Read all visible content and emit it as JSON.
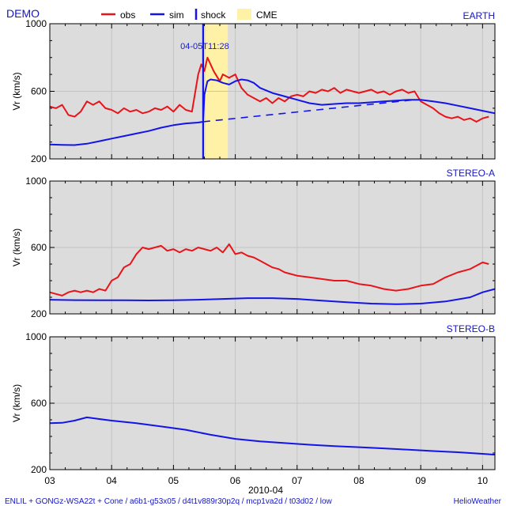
{
  "header": {
    "title": "DEMO",
    "legend": [
      {
        "label": "obs",
        "color": "#e8141a",
        "kind": "line"
      },
      {
        "label": "sim",
        "color": "#1414e8",
        "kind": "line"
      },
      {
        "label": "shock",
        "color": "#1414e8",
        "kind": "tick"
      },
      {
        "label": "CME",
        "color": "#fff2a6",
        "kind": "box"
      }
    ]
  },
  "footer": {
    "left": "ENLIL + GONGz-WSA22t + Cone / a6b1-g53x05 / d4t1v889r30p2q / mcp1va2d / t03d02 / low",
    "right": "HelioWeather"
  },
  "colors": {
    "obs": "#e8141a",
    "sim": "#1414e8",
    "panel_bg": "#dcdcdc",
    "cme": "#fff2a6",
    "grid": "#c4c4c4"
  },
  "chart_data": [
    {
      "type": "line",
      "title": "EARTH",
      "ylabel": "Vr (km/s)",
      "xlabel": "2010-04",
      "xlim": [
        3.0,
        10.2
      ],
      "ylim": [
        200,
        1000
      ],
      "yticks": [
        200,
        600,
        1000
      ],
      "xticks": [
        "03",
        "04",
        "05",
        "06",
        "07",
        "08",
        "09",
        "10"
      ],
      "shock": {
        "x": 5.48,
        "label": "04-05T11:28"
      },
      "cme": {
        "x_start": 5.52,
        "x_end": 5.88
      },
      "series": [
        {
          "name": "obs",
          "x": [
            3.0,
            3.1,
            3.2,
            3.3,
            3.4,
            3.5,
            3.6,
            3.7,
            3.8,
            3.9,
            4.0,
            4.1,
            4.2,
            4.3,
            4.4,
            4.5,
            4.6,
            4.7,
            4.8,
            4.9,
            5.0,
            5.1,
            5.2,
            5.3,
            5.4,
            5.45,
            5.5,
            5.55,
            5.6,
            5.65,
            5.7,
            5.75,
            5.8,
            5.9,
            6.0,
            6.1,
            6.2,
            6.3,
            6.4,
            6.5,
            6.6,
            6.7,
            6.8,
            6.9,
            7.0,
            7.1,
            7.2,
            7.3,
            7.4,
            7.5,
            7.6,
            7.7,
            7.8,
            7.9,
            8.0,
            8.1,
            8.2,
            8.3,
            8.4,
            8.5,
            8.6,
            8.7,
            8.8,
            8.9,
            9.0,
            9.1,
            9.2,
            9.3,
            9.4,
            9.5,
            9.6,
            9.7,
            9.8,
            9.9,
            10.0,
            10.1
          ],
          "y": [
            510,
            500,
            520,
            460,
            450,
            480,
            540,
            520,
            540,
            500,
            490,
            470,
            500,
            480,
            490,
            470,
            480,
            500,
            490,
            510,
            480,
            520,
            490,
            480,
            700,
            760,
            720,
            800,
            760,
            720,
            690,
            660,
            700,
            680,
            700,
            620,
            580,
            560,
            540,
            560,
            530,
            560,
            540,
            570,
            580,
            570,
            600,
            590,
            610,
            600,
            620,
            590,
            610,
            600,
            590,
            600,
            610,
            590,
            600,
            580,
            600,
            610,
            590,
            600,
            540,
            520,
            500,
            470,
            450,
            440,
            450,
            430,
            440,
            420,
            440,
            450
          ]
        },
        {
          "name": "sim",
          "x": [
            3.0,
            3.2,
            3.4,
            3.6,
            3.8,
            4.0,
            4.2,
            4.4,
            4.6,
            4.8,
            5.0,
            5.2,
            5.4,
            5.48,
            5.5,
            5.55,
            5.6,
            5.7,
            5.8,
            5.9,
            6.0,
            6.1,
            6.2,
            6.3,
            6.4,
            6.6,
            6.8,
            7.0,
            7.2,
            7.4,
            7.6,
            7.8,
            8.0,
            8.2,
            8.4,
            8.6,
            8.8,
            9.0,
            9.2,
            9.4,
            9.6,
            9.8,
            10.0,
            10.2
          ],
          "y": [
            285,
            283,
            282,
            290,
            305,
            320,
            335,
            350,
            365,
            385,
            400,
            410,
            415,
            420,
            580,
            660,
            670,
            665,
            650,
            640,
            660,
            670,
            665,
            650,
            620,
            590,
            570,
            550,
            530,
            520,
            525,
            530,
            530,
            535,
            540,
            545,
            550,
            550,
            540,
            530,
            515,
            500,
            485,
            470
          ]
        },
        {
          "name": "sim-ambient",
          "style": "dashed",
          "x": [
            5.48,
            8.9
          ],
          "y": [
            420,
            550
          ]
        }
      ]
    },
    {
      "type": "line",
      "title": "STEREO-A",
      "ylabel": "Vr (km/s)",
      "xlim": [
        3.0,
        10.2
      ],
      "ylim": [
        200,
        1000
      ],
      "yticks": [
        200,
        600,
        1000
      ],
      "series": [
        {
          "name": "obs",
          "x": [
            3.0,
            3.1,
            3.2,
            3.3,
            3.4,
            3.5,
            3.6,
            3.7,
            3.8,
            3.9,
            4.0,
            4.1,
            4.2,
            4.3,
            4.4,
            4.5,
            4.6,
            4.7,
            4.8,
            4.9,
            5.0,
            5.1,
            5.2,
            5.3,
            5.4,
            5.5,
            5.6,
            5.7,
            5.8,
            5.9,
            6.0,
            6.1,
            6.2,
            6.3,
            6.4,
            6.5,
            6.6,
            6.7,
            6.8,
            6.9,
            7.0,
            7.2,
            7.4,
            7.6,
            7.8,
            8.0,
            8.2,
            8.4,
            8.6,
            8.8,
            9.0,
            9.2,
            9.4,
            9.6,
            9.8,
            10.0,
            10.1
          ],
          "y": [
            330,
            320,
            310,
            330,
            340,
            330,
            340,
            330,
            350,
            340,
            400,
            420,
            480,
            500,
            560,
            600,
            590,
            600,
            610,
            580,
            590,
            570,
            590,
            580,
            600,
            590,
            580,
            600,
            570,
            620,
            560,
            570,
            550,
            540,
            520,
            500,
            480,
            470,
            450,
            440,
            430,
            420,
            410,
            400,
            400,
            380,
            370,
            350,
            340,
            350,
            370,
            380,
            420,
            450,
            470,
            510,
            500
          ]
        },
        {
          "name": "sim",
          "x": [
            3.0,
            3.4,
            3.8,
            4.2,
            4.6,
            5.0,
            5.4,
            5.8,
            6.2,
            6.6,
            7.0,
            7.4,
            7.8,
            8.2,
            8.6,
            9.0,
            9.4,
            9.8,
            10.0,
            10.2
          ],
          "y": [
            285,
            283,
            282,
            282,
            281,
            282,
            285,
            290,
            295,
            295,
            290,
            280,
            270,
            262,
            258,
            262,
            275,
            300,
            330,
            350
          ]
        }
      ]
    },
    {
      "type": "line",
      "title": "STEREO-B",
      "ylabel": "Vr (km/s)",
      "xlim": [
        3.0,
        10.2
      ],
      "ylim": [
        200,
        1000
      ],
      "yticks": [
        200,
        600,
        1000
      ],
      "series": [
        {
          "name": "sim",
          "x": [
            3.0,
            3.2,
            3.4,
            3.6,
            3.8,
            4.0,
            4.4,
            4.8,
            5.2,
            5.6,
            6.0,
            6.4,
            6.8,
            7.2,
            7.6,
            8.0,
            8.4,
            8.8,
            9.2,
            9.6,
            10.0,
            10.2
          ],
          "y": [
            480,
            482,
            495,
            515,
            505,
            495,
            480,
            460,
            440,
            410,
            385,
            370,
            360,
            350,
            342,
            335,
            328,
            320,
            312,
            305,
            295,
            290
          ]
        }
      ]
    }
  ]
}
